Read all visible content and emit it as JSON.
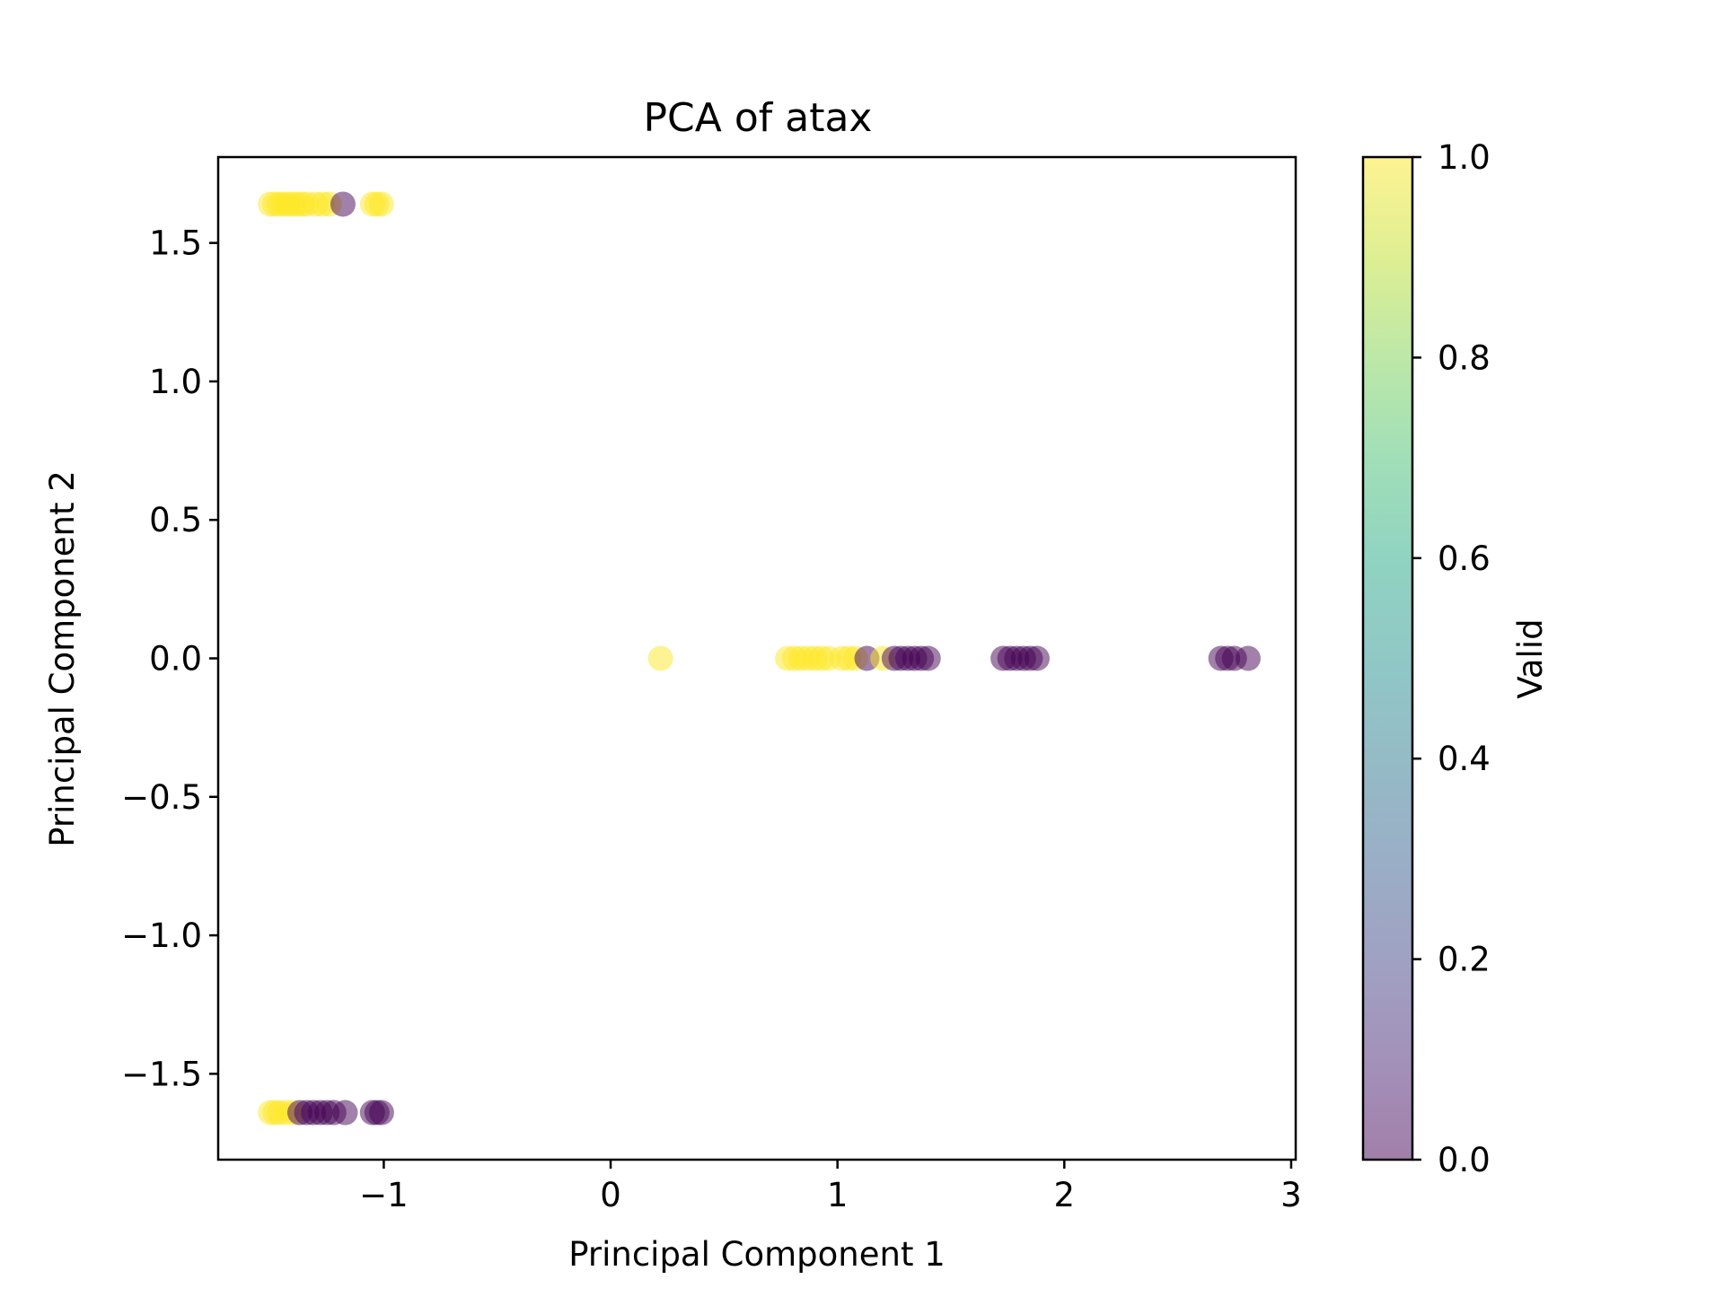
{
  "chart_data": {
    "type": "scatter",
    "title": "PCA of atax",
    "xlabel": "Principal Component 1",
    "ylabel": "Principal Component 2",
    "xlim": [
      -1.73,
      3.02
    ],
    "ylim": [
      -1.81,
      1.81
    ],
    "x_ticks": [
      {
        "value": -1,
        "label": "−1"
      },
      {
        "value": 0,
        "label": "0"
      },
      {
        "value": 1,
        "label": "1"
      },
      {
        "value": 2,
        "label": "2"
      },
      {
        "value": 3,
        "label": "3"
      }
    ],
    "y_ticks": [
      {
        "value": -1.5,
        "label": "−1.5"
      },
      {
        "value": -1.0,
        "label": "−1.0"
      },
      {
        "value": -0.5,
        "label": "−0.5"
      },
      {
        "value": 0.0,
        "label": "0.0"
      },
      {
        "value": 0.5,
        "label": "0.5"
      },
      {
        "value": 1.0,
        "label": "1.0"
      },
      {
        "value": 1.5,
        "label": "1.5"
      }
    ],
    "grid": false,
    "marker_alpha": 0.5,
    "colormap": "viridis",
    "colorbar": {
      "label": "Valid",
      "range": [
        0.0,
        1.0
      ],
      "ticks": [
        {
          "value": 0.0,
          "label": "0.0"
        },
        {
          "value": 0.2,
          "label": "0.2"
        },
        {
          "value": 0.4,
          "label": "0.4"
        },
        {
          "value": 0.6,
          "label": "0.6"
        },
        {
          "value": 0.8,
          "label": "0.8"
        },
        {
          "value": 1.0,
          "label": "1.0"
        }
      ],
      "stops": [
        "#440154",
        "#482475",
        "#414487",
        "#355f8d",
        "#2a788e",
        "#21918c",
        "#22a884",
        "#44bf70",
        "#7ad151",
        "#bddf26",
        "#fde725"
      ]
    },
    "points": [
      {
        "x": -1.5,
        "y": 1.64,
        "valid": 1
      },
      {
        "x": -1.48,
        "y": 1.64,
        "valid": 1
      },
      {
        "x": -1.46,
        "y": 1.64,
        "valid": 1
      },
      {
        "x": -1.44,
        "y": 1.64,
        "valid": 1
      },
      {
        "x": -1.42,
        "y": 1.64,
        "valid": 1
      },
      {
        "x": -1.4,
        "y": 1.64,
        "valid": 1
      },
      {
        "x": -1.38,
        "y": 1.64,
        "valid": 1
      },
      {
        "x": -1.36,
        "y": 1.64,
        "valid": 1
      },
      {
        "x": -1.34,
        "y": 1.64,
        "valid": 1
      },
      {
        "x": -1.3,
        "y": 1.64,
        "valid": 1
      },
      {
        "x": -1.27,
        "y": 1.64,
        "valid": 1
      },
      {
        "x": -1.24,
        "y": 1.64,
        "valid": 1
      },
      {
        "x": -1.18,
        "y": 1.64,
        "valid": 0
      },
      {
        "x": -1.05,
        "y": 1.64,
        "valid": 1
      },
      {
        "x": -1.03,
        "y": 1.64,
        "valid": 1
      },
      {
        "x": -1.01,
        "y": 1.64,
        "valid": 1
      },
      {
        "x": -1.5,
        "y": -1.64,
        "valid": 1
      },
      {
        "x": -1.48,
        "y": -1.64,
        "valid": 1
      },
      {
        "x": -1.46,
        "y": -1.64,
        "valid": 1
      },
      {
        "x": -1.43,
        "y": -1.64,
        "valid": 1
      },
      {
        "x": -1.4,
        "y": -1.64,
        "valid": 1
      },
      {
        "x": -1.37,
        "y": -1.64,
        "valid": 0
      },
      {
        "x": -1.34,
        "y": -1.64,
        "valid": 0
      },
      {
        "x": -1.31,
        "y": -1.64,
        "valid": 0
      },
      {
        "x": -1.28,
        "y": -1.64,
        "valid": 0
      },
      {
        "x": -1.25,
        "y": -1.64,
        "valid": 0
      },
      {
        "x": -1.22,
        "y": -1.64,
        "valid": 0
      },
      {
        "x": -1.17,
        "y": -1.64,
        "valid": 0
      },
      {
        "x": -1.05,
        "y": -1.64,
        "valid": 0
      },
      {
        "x": -1.03,
        "y": -1.64,
        "valid": 0
      },
      {
        "x": -1.01,
        "y": -1.64,
        "valid": 0
      },
      {
        "x": 0.22,
        "y": 0.0,
        "valid": 1
      },
      {
        "x": 0.78,
        "y": 0.0,
        "valid": 1
      },
      {
        "x": 0.81,
        "y": 0.0,
        "valid": 1
      },
      {
        "x": 0.84,
        "y": 0.0,
        "valid": 1
      },
      {
        "x": 0.87,
        "y": 0.0,
        "valid": 1
      },
      {
        "x": 0.9,
        "y": 0.0,
        "valid": 1
      },
      {
        "x": 0.93,
        "y": 0.0,
        "valid": 1
      },
      {
        "x": 0.96,
        "y": 0.0,
        "valid": 1
      },
      {
        "x": 1.02,
        "y": 0.0,
        "valid": 1
      },
      {
        "x": 1.05,
        "y": 0.0,
        "valid": 1
      },
      {
        "x": 1.08,
        "y": 0.0,
        "valid": 1
      },
      {
        "x": 1.13,
        "y": 0.0,
        "valid": 0
      },
      {
        "x": 1.2,
        "y": 0.0,
        "valid": 1
      },
      {
        "x": 1.25,
        "y": 0.0,
        "valid": 0
      },
      {
        "x": 1.28,
        "y": 0.0,
        "valid": 0
      },
      {
        "x": 1.31,
        "y": 0.0,
        "valid": 0
      },
      {
        "x": 1.34,
        "y": 0.0,
        "valid": 0
      },
      {
        "x": 1.37,
        "y": 0.0,
        "valid": 0
      },
      {
        "x": 1.4,
        "y": 0.0,
        "valid": 0
      },
      {
        "x": 1.73,
        "y": 0.0,
        "valid": 0
      },
      {
        "x": 1.76,
        "y": 0.0,
        "valid": 0
      },
      {
        "x": 1.79,
        "y": 0.0,
        "valid": 0
      },
      {
        "x": 1.82,
        "y": 0.0,
        "valid": 0
      },
      {
        "x": 1.85,
        "y": 0.0,
        "valid": 0
      },
      {
        "x": 1.88,
        "y": 0.0,
        "valid": 0
      },
      {
        "x": 2.69,
        "y": 0.0,
        "valid": 0
      },
      {
        "x": 2.72,
        "y": 0.0,
        "valid": 0
      },
      {
        "x": 2.75,
        "y": 0.0,
        "valid": 0
      },
      {
        "x": 2.81,
        "y": 0.0,
        "valid": 0
      }
    ]
  }
}
